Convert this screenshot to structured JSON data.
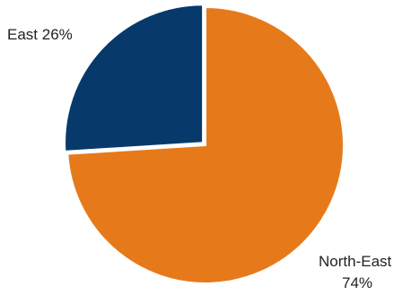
{
  "chart_data": {
    "type": "pie",
    "slices": [
      {
        "name": "East",
        "value": 26,
        "color": "#073A6B",
        "label": "East 26%"
      },
      {
        "name": "North-East",
        "value": 74,
        "color": "#E67A1A",
        "label_lines": [
          "North-East",
          "74%"
        ]
      }
    ],
    "start_angle_deg": 0,
    "direction": "counterclockwise",
    "exploded_slice": "East"
  }
}
